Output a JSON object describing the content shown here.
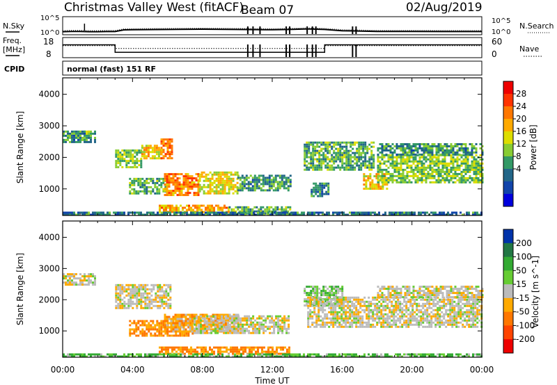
{
  "header": {
    "station": "Christmas Valley West (fitACF)",
    "beam": "Beam 07",
    "date": "02/Aug/2019"
  },
  "panel_labels": {
    "nsky": "N.Sky",
    "nsearch": "N.Search",
    "freq_line1": "Freq.",
    "freq_line2": "[MHz]",
    "nave": "Nave",
    "cpid": "CPID",
    "cpid_value": "normal (fast) 151 RF"
  },
  "noise_axis": {
    "left_top": "10^5",
    "left_bottom": "10^0",
    "right_top": "10^5",
    "right_bottom": "10^0"
  },
  "freq_axis": {
    "left_ticks": [
      "18",
      "8"
    ],
    "right_ticks": [
      "60",
      "0"
    ]
  },
  "time_ticks": [
    "00:00",
    "04:00",
    "08:00",
    "12:00",
    "16:00",
    "20:00",
    "00:00"
  ],
  "xlabel": "Time UT",
  "range_ticks": [
    "1000",
    "2000",
    "3000",
    "4000"
  ],
  "ylabel": "Slant Range [km]",
  "power_colorbar": {
    "label": "Power [dB]",
    "ticks": [
      "28",
      "24",
      "20",
      "16",
      "12",
      "8",
      "4"
    ],
    "colors": [
      "#ee0000",
      "#ff3300",
      "#ff7700",
      "#ffaa00",
      "#dddd00",
      "#88cc33",
      "#339966",
      "#226688",
      "#1144aa",
      "#0000dd"
    ]
  },
  "velocity_colorbar": {
    "label": "Velocity [m s^-1]",
    "ticks": [
      "200",
      "100",
      "50",
      "15",
      "-15",
      "-50",
      "-100",
      "-200"
    ],
    "colors": [
      "#0033aa",
      "#227744",
      "#33aa33",
      "#66cc33",
      "#bbbbbb",
      "#ffaa00",
      "#ff7700",
      "#ff4400",
      "#ee0000"
    ]
  },
  "chart_data": [
    {
      "type": "heatmap",
      "title": "Power",
      "xlabel": "Time UT",
      "ylabel": "Slant Range [km]",
      "xlim": [
        "00:00",
        "24:00"
      ],
      "ylim": [
        180,
        4500
      ],
      "colorbar": {
        "label": "Power [dB]",
        "range": [
          0,
          32
        ]
      },
      "regions": [
        {
          "t0": 0.0,
          "t1": 1.8,
          "r0": 2500,
          "r1": 2850,
          "value": 10
        },
        {
          "t0": 1.2,
          "t1": 1.5,
          "r0": 2750,
          "r1": 2850,
          "value": 14
        },
        {
          "t0": 3.0,
          "t1": 4.5,
          "r0": 1700,
          "r1": 2250,
          "value": 14
        },
        {
          "t0": 4.5,
          "t1": 5.6,
          "r0": 2000,
          "r1": 2400,
          "value": 20
        },
        {
          "t0": 5.6,
          "t1": 6.3,
          "r0": 2000,
          "r1": 2600,
          "value": 24
        },
        {
          "t0": 3.8,
          "t1": 6.0,
          "r0": 850,
          "r1": 1350,
          "value": 12
        },
        {
          "t0": 5.8,
          "t1": 7.8,
          "r0": 800,
          "r1": 1500,
          "value": 24
        },
        {
          "t0": 7.8,
          "t1": 10.0,
          "r0": 850,
          "r1": 1550,
          "value": 18
        },
        {
          "t0": 10.0,
          "t1": 13.0,
          "r0": 950,
          "r1": 1450,
          "value": 10
        },
        {
          "t0": 5.5,
          "t1": 9.5,
          "r0": 300,
          "r1": 500,
          "value": 22
        },
        {
          "t0": 9.5,
          "t1": 13.0,
          "r0": 250,
          "r1": 450,
          "value": 12
        },
        {
          "t0": 0.0,
          "t1": 24.0,
          "r0": 180,
          "r1": 280,
          "value": 8
        },
        {
          "t0": 13.8,
          "t1": 17.8,
          "r0": 1600,
          "r1": 2500,
          "value": 12
        },
        {
          "t0": 14.2,
          "t1": 15.2,
          "r0": 800,
          "r1": 1200,
          "value": 9
        },
        {
          "t0": 17.2,
          "t1": 18.6,
          "r0": 1000,
          "r1": 1500,
          "value": 20
        },
        {
          "t0": 18.0,
          "t1": 24.0,
          "r0": 1200,
          "r1": 2100,
          "value": 14
        },
        {
          "t0": 18.0,
          "t1": 24.0,
          "r0": 2100,
          "r1": 2450,
          "value": 10
        }
      ]
    },
    {
      "type": "heatmap",
      "title": "Velocity",
      "xlabel": "Time UT",
      "ylabel": "Slant Range [km]",
      "xlim": [
        "00:00",
        "24:00"
      ],
      "ylim": [
        180,
        4500
      ],
      "colorbar": {
        "label": "Velocity [m s^-1]",
        "range": [
          -250,
          250
        ]
      },
      "regions": [
        {
          "t0": 0.0,
          "t1": 1.8,
          "r0": 2500,
          "r1": 2850,
          "value": 0
        },
        {
          "t0": 3.0,
          "t1": 6.2,
          "r0": 1700,
          "r1": 2500,
          "value": 0
        },
        {
          "t0": 3.8,
          "t1": 7.5,
          "r0": 850,
          "r1": 1350,
          "value": -50
        },
        {
          "t0": 5.8,
          "t1": 10.0,
          "r0": 1000,
          "r1": 1550,
          "value": -30
        },
        {
          "t0": 7.5,
          "t1": 13.0,
          "r0": 900,
          "r1": 1500,
          "value": 0
        },
        {
          "t0": 5.5,
          "t1": 13.0,
          "r0": 250,
          "r1": 500,
          "value": -50
        },
        {
          "t0": 0.0,
          "t1": 24.0,
          "r0": 180,
          "r1": 280,
          "value": 40
        },
        {
          "t0": 13.8,
          "t1": 16.0,
          "r0": 1800,
          "r1": 2450,
          "value": 30
        },
        {
          "t0": 14.0,
          "t1": 24.0,
          "r0": 1100,
          "r1": 2100,
          "value": 0
        },
        {
          "t0": 18.0,
          "t1": 24.0,
          "r0": 2100,
          "r1": 2450,
          "value": 0
        }
      ]
    },
    {
      "type": "line",
      "title": "N.Sky / N.Search",
      "x": [
        0,
        0.5,
        1.0,
        1.5,
        2.0,
        2.5,
        3.0,
        3.5,
        4.0,
        6.0,
        8.0,
        10.0,
        12.0,
        13.0,
        14.0,
        15.0,
        16.0,
        18.0,
        20.0,
        22.0,
        24.0
      ],
      "series": [
        {
          "values": [
            0.28,
            0.32,
            0.32,
            0.28,
            0.28,
            0.3,
            0.3,
            0.5,
            0.52,
            0.55,
            0.58,
            0.55,
            0.52,
            0.55,
            0.62,
            0.55,
            0.4,
            0.32,
            0.32,
            0.3,
            0.3
          ]
        }
      ]
    },
    {
      "type": "line",
      "title": "Freq. / Nave",
      "x": [
        0,
        3.0,
        3.0,
        15.0,
        15.0,
        24.0
      ],
      "series": [
        {
          "values": [
            14.5,
            14.5,
            10.5,
            10.5,
            14.5,
            14.5
          ]
        },
        {
          "values": [
            0.6,
            0.6,
            0.45,
            0.45,
            0.6,
            0.6
          ]
        }
      ]
    }
  ]
}
